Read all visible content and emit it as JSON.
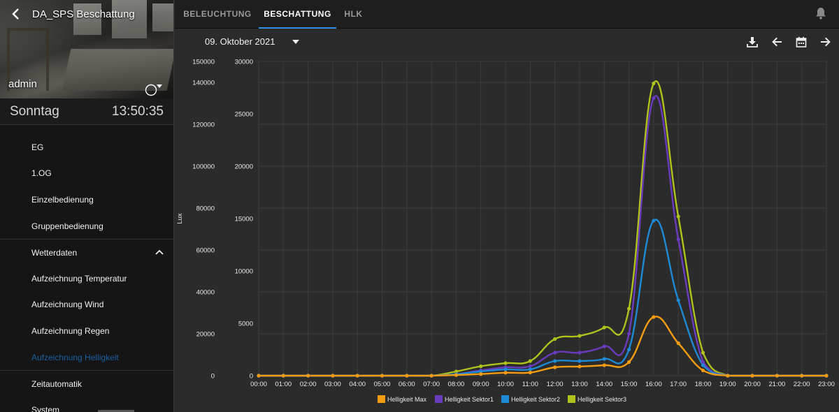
{
  "sidebar": {
    "title": "DA_SPS Beschattung",
    "user": "admin",
    "day": "Sonntag",
    "time": "13:50:35",
    "items": [
      {
        "label": "EG",
        "sep": false,
        "active": false
      },
      {
        "label": "1.OG",
        "sep": false,
        "active": false
      },
      {
        "label": "Einzelbedienung",
        "sep": false,
        "active": false
      },
      {
        "label": "Gruppenbedienung",
        "sep": false,
        "active": false
      },
      {
        "label": "Wetterdaten",
        "sep": true,
        "active": false,
        "expanded": true
      },
      {
        "label": "Aufzeichnung Temperatur",
        "sep": false,
        "active": false
      },
      {
        "label": "Aufzeichnung Wind",
        "sep": false,
        "active": false
      },
      {
        "label": "Aufzeichnung Regen",
        "sep": false,
        "active": false
      },
      {
        "label": "Aufzeichnung Helligkeit",
        "sep": false,
        "active": true
      },
      {
        "label": "Zeitautomatik",
        "sep": true,
        "active": false
      },
      {
        "label": "System",
        "sep": false,
        "active": false
      }
    ]
  },
  "tabs": [
    {
      "label": "BELEUCHTUNG",
      "active": false
    },
    {
      "label": "BESCHATTUNG",
      "active": true
    },
    {
      "label": "HLK",
      "active": false
    }
  ],
  "datebar": {
    "date": "09. Oktober 2021",
    "icons": [
      "download-icon",
      "arrow-left-icon",
      "calendar-icon",
      "arrow-right-icon"
    ]
  },
  "colors": {
    "accent": "#2f8de4",
    "active_menu": "#1a5fa3"
  },
  "chart_data": {
    "type": "line",
    "ylabel": "Lux",
    "grid": true,
    "legend_position": "bottom",
    "x": [
      "00:00",
      "01:00",
      "02:00",
      "03:00",
      "04:00",
      "05:00",
      "06:00",
      "07:00",
      "08:00",
      "09:00",
      "10:00",
      "11:00",
      "12:00",
      "13:00",
      "14:00",
      "15:00",
      "16:00",
      "17:00",
      "18:00",
      "19:00",
      "20:00",
      "21:00",
      "22:00",
      "23:00"
    ],
    "y_left": {
      "min": 0,
      "max": 150000,
      "ticks": [
        0,
        20000,
        40000,
        60000,
        80000,
        100000,
        120000,
        140000,
        150000
      ]
    },
    "y_right": {
      "min": 0,
      "max": 30000,
      "ticks": [
        0,
        5000,
        10000,
        15000,
        20000,
        25000,
        30000
      ]
    },
    "series": [
      {
        "name": "Helligkeit Max",
        "color": "#f39c12",
        "axis": "left",
        "values": [
          0,
          0,
          0,
          0,
          0,
          0,
          0,
          0,
          300,
          800,
          1400,
          1500,
          4000,
          4400,
          5000,
          6500,
          28000,
          15500,
          2500,
          0,
          0,
          0,
          0,
          0
        ]
      },
      {
        "name": "Helligkeit Sektor1",
        "color": "#6a3bbd",
        "axis": "left",
        "values": [
          0,
          0,
          0,
          0,
          0,
          0,
          0,
          0,
          700,
          2500,
          4000,
          4500,
          11000,
          11000,
          14000,
          20000,
          132500,
          65000,
          6500,
          0,
          0,
          0,
          0,
          0
        ]
      },
      {
        "name": "Helligkeit Sektor2",
        "color": "#1e8ad6",
        "axis": "left",
        "values": [
          0,
          0,
          0,
          0,
          0,
          0,
          0,
          0,
          700,
          2000,
          3000,
          3000,
          7000,
          7000,
          8000,
          12500,
          74000,
          36000,
          5000,
          0,
          0,
          0,
          0,
          0
        ]
      },
      {
        "name": "Helligkeit Sektor3",
        "color": "#b0c21c",
        "axis": "left",
        "values": [
          0,
          0,
          0,
          0,
          0,
          0,
          0,
          0,
          2000,
          4500,
          6000,
          7000,
          17500,
          19000,
          23000,
          32000,
          139500,
          76000,
          11000,
          0,
          0,
          0,
          0,
          0
        ]
      }
    ]
  }
}
